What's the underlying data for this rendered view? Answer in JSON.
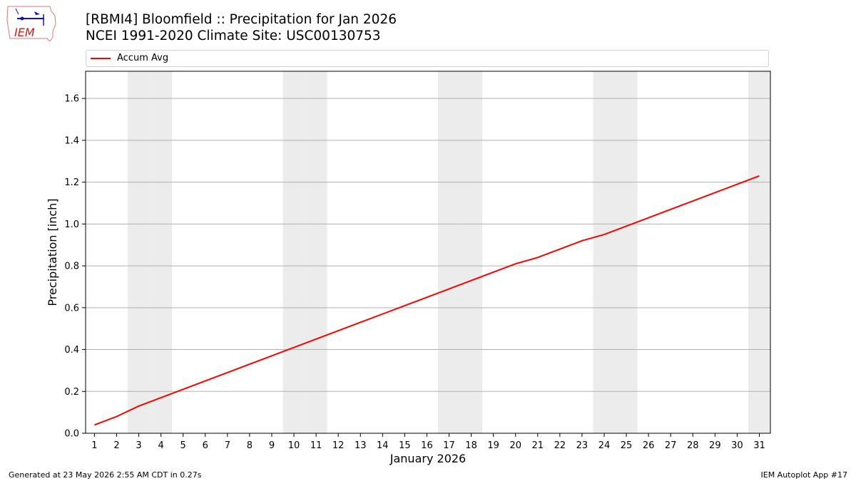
{
  "header": {
    "title_line1": "[RBMI4] Bloomfield :: Precipitation for Jan 2026",
    "title_line2": "NCEI 1991-2020 Climate Site: USC00130753",
    "logo_text": "IEM"
  },
  "footer": {
    "left": "Generated at 23 May 2026 2:55 AM CDT in 0.27s",
    "right": "IEM Autoplot App #17"
  },
  "colors": {
    "line": "#ff0000",
    "weekend_shade": "#ececec",
    "grid": "#b0b0b0"
  },
  "chart_data": {
    "type": "line",
    "xlabel": "January 2026",
    "ylabel": "Precipitation [inch]",
    "ylim": [
      0,
      1.73
    ],
    "xlim": [
      0.6,
      31.5
    ],
    "yticks": [
      0.0,
      0.2,
      0.4,
      0.6,
      0.8,
      1.0,
      1.2,
      1.4,
      1.6
    ],
    "grid": "horizontal",
    "legend_position": "top",
    "weekend_days": [
      3,
      4,
      10,
      11,
      17,
      18,
      24,
      25,
      31
    ],
    "x": [
      1,
      2,
      3,
      4,
      5,
      6,
      7,
      8,
      9,
      10,
      11,
      12,
      13,
      14,
      15,
      16,
      17,
      18,
      19,
      20,
      21,
      22,
      23,
      24,
      25,
      26,
      27,
      28,
      29,
      30,
      31
    ],
    "series": [
      {
        "name": "Accum Avg",
        "color": "#ff0000",
        "values": [
          0.04,
          0.08,
          0.13,
          0.17,
          0.21,
          0.25,
          0.29,
          0.33,
          0.37,
          0.41,
          0.45,
          0.49,
          0.53,
          0.57,
          0.61,
          0.65,
          0.69,
          0.73,
          0.77,
          0.81,
          0.84,
          0.88,
          0.92,
          0.95,
          0.99,
          1.03,
          1.07,
          1.11,
          1.15,
          1.19,
          1.23
        ]
      }
    ]
  }
}
